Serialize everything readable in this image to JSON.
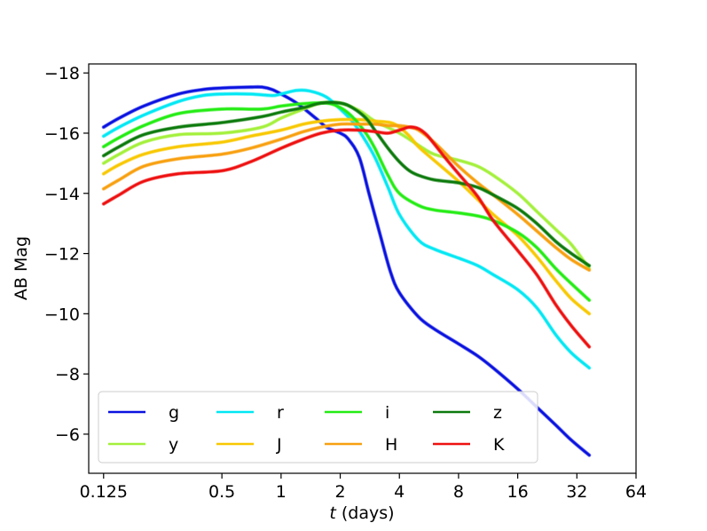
{
  "chart_data": {
    "type": "line",
    "title": "",
    "xlabel_italic": "t",
    "xlabel_rest": " (days)",
    "ylabel": "AB Mag",
    "xscale": "log2",
    "xlim": [
      0.105,
      64
    ],
    "ylim": [
      -4.7,
      -18.3
    ],
    "y_inverted": true,
    "x_ticks": [
      {
        "value": 0.125,
        "label": "0.125"
      },
      {
        "value": 0.5,
        "label": "0.5"
      },
      {
        "value": 1,
        "label": "1"
      },
      {
        "value": 2,
        "label": "2"
      },
      {
        "value": 4,
        "label": "4"
      },
      {
        "value": 8,
        "label": "8"
      },
      {
        "value": 16,
        "label": "16"
      },
      {
        "value": 32,
        "label": "32"
      },
      {
        "value": 64,
        "label": "64"
      }
    ],
    "y_ticks": [
      {
        "value": -18,
        "label": "−18"
      },
      {
        "value": -16,
        "label": "−16"
      },
      {
        "value": -14,
        "label": "−14"
      },
      {
        "value": -12,
        "label": "−12"
      },
      {
        "value": -10,
        "label": "−10"
      },
      {
        "value": -8,
        "label": "−8"
      },
      {
        "value": -6,
        "label": "−6"
      }
    ],
    "legend_position": "lower-left",
    "legend_columns": 4,
    "series": [
      {
        "name": "g",
        "color": "#0a12e0",
        "x": [
          0.125,
          0.15,
          0.2,
          0.3,
          0.4,
          0.5,
          0.6,
          0.7,
          0.8,
          0.9,
          1.0,
          1.2,
          1.5,
          1.7,
          2.0,
          2.2,
          2.5,
          2.8,
          3.2,
          3.6,
          4.0,
          5.0,
          6.0,
          8.0,
          10.0,
          12.0,
          16.0,
          20.0,
          25.0,
          30.0,
          37.0
        ],
        "y": [
          -16.2,
          -16.5,
          -16.9,
          -17.3,
          -17.45,
          -17.5,
          -17.52,
          -17.53,
          -17.53,
          -17.45,
          -17.3,
          -17.0,
          -16.5,
          -16.2,
          -16.0,
          -15.8,
          -15.2,
          -14.0,
          -12.6,
          -11.4,
          -10.7,
          -9.9,
          -9.5,
          -9.0,
          -8.6,
          -8.2,
          -7.5,
          -6.9,
          -6.3,
          -5.8,
          -5.3
        ]
      },
      {
        "name": "y",
        "color": "#a4f03c",
        "x": [
          0.125,
          0.15,
          0.2,
          0.3,
          0.5,
          0.8,
          1.0,
          1.3,
          1.6,
          2.0,
          2.5,
          3.0,
          4.0,
          5.0,
          6.0,
          8.0,
          10.0,
          12.0,
          16.0,
          20.0,
          25.0,
          30.0,
          37.0
        ],
        "y": [
          -15.0,
          -15.3,
          -15.7,
          -15.95,
          -16.0,
          -16.2,
          -16.5,
          -16.8,
          -17.0,
          -17.0,
          -16.75,
          -16.4,
          -16.0,
          -15.6,
          -15.3,
          -15.1,
          -14.9,
          -14.6,
          -14.0,
          -13.4,
          -12.8,
          -12.3,
          -11.5
        ]
      },
      {
        "name": "r",
        "color": "#00e8f4",
        "x": [
          0.125,
          0.15,
          0.2,
          0.3,
          0.4,
          0.5,
          0.7,
          0.9,
          1.0,
          1.2,
          1.4,
          1.7,
          2.0,
          2.3,
          2.6,
          3.0,
          3.5,
          4.0,
          5.0,
          6.0,
          8.0,
          10.0,
          12.0,
          16.0,
          20.0,
          25.0,
          30.0,
          37.0
        ],
        "y": [
          -15.9,
          -16.2,
          -16.6,
          -17.05,
          -17.25,
          -17.3,
          -17.3,
          -17.25,
          -17.3,
          -17.42,
          -17.4,
          -17.2,
          -16.8,
          -16.4,
          -15.9,
          -15.2,
          -14.2,
          -13.3,
          -12.45,
          -12.15,
          -11.85,
          -11.6,
          -11.3,
          -10.8,
          -10.2,
          -9.3,
          -8.7,
          -8.2
        ]
      },
      {
        "name": "J",
        "color": "#f8c800",
        "x": [
          0.125,
          0.15,
          0.2,
          0.3,
          0.5,
          0.7,
          1.0,
          1.3,
          1.6,
          2.0,
          2.5,
          3.0,
          3.6,
          4.0,
          4.5,
          5.0,
          6.0,
          8.0,
          10.0,
          12.0,
          16.0,
          20.0,
          25.0,
          30.0,
          37.0
        ],
        "y": [
          -14.65,
          -14.95,
          -15.3,
          -15.55,
          -15.7,
          -15.9,
          -16.1,
          -16.3,
          -16.4,
          -16.45,
          -16.45,
          -16.4,
          -16.35,
          -16.2,
          -15.9,
          -15.55,
          -15.1,
          -14.4,
          -13.8,
          -13.3,
          -12.6,
          -11.9,
          -11.1,
          -10.5,
          -10.0
        ]
      },
      {
        "name": "i",
        "color": "#24ec14",
        "x": [
          0.125,
          0.15,
          0.2,
          0.3,
          0.5,
          0.8,
          1.0,
          1.3,
          1.7,
          2.0,
          2.3,
          2.7,
          3.0,
          3.5,
          4.0,
          5.0,
          6.0,
          8.0,
          10.0,
          12.0,
          16.0,
          20.0,
          25.0,
          30.0,
          37.0
        ],
        "y": [
          -15.55,
          -15.85,
          -16.25,
          -16.65,
          -16.8,
          -16.8,
          -16.9,
          -16.98,
          -17.0,
          -16.85,
          -16.55,
          -16.0,
          -15.5,
          -14.6,
          -14.0,
          -13.6,
          -13.45,
          -13.35,
          -13.25,
          -13.1,
          -12.7,
          -12.2,
          -11.5,
          -11.0,
          -10.45
        ]
      },
      {
        "name": "H",
        "color": "#f8a010",
        "x": [
          0.125,
          0.15,
          0.2,
          0.3,
          0.5,
          0.7,
          1.0,
          1.3,
          1.6,
          2.0,
          2.5,
          3.0,
          3.5,
          4.0,
          4.5,
          5.0,
          6.0,
          8.0,
          10.0,
          12.0,
          16.0,
          20.0,
          25.0,
          30.0,
          37.0
        ],
        "y": [
          -14.15,
          -14.45,
          -14.9,
          -15.15,
          -15.3,
          -15.5,
          -15.8,
          -16.05,
          -16.2,
          -16.3,
          -16.3,
          -16.3,
          -16.25,
          -16.25,
          -16.2,
          -16.1,
          -15.7,
          -14.9,
          -14.35,
          -13.95,
          -13.3,
          -12.75,
          -12.2,
          -11.8,
          -11.45
        ]
      },
      {
        "name": "z",
        "color": "#0c7a0c",
        "x": [
          0.125,
          0.15,
          0.2,
          0.3,
          0.5,
          0.8,
          1.0,
          1.3,
          1.6,
          2.0,
          2.3,
          2.7,
          3.0,
          3.5,
          4.0,
          4.5,
          5.0,
          6.0,
          8.0,
          10.0,
          12.0,
          16.0,
          20.0,
          25.0,
          30.0,
          37.0
        ],
        "y": [
          -15.25,
          -15.55,
          -15.95,
          -16.2,
          -16.35,
          -16.55,
          -16.7,
          -16.85,
          -17.0,
          -17.0,
          -16.85,
          -16.5,
          -16.1,
          -15.5,
          -15.05,
          -14.75,
          -14.6,
          -14.45,
          -14.35,
          -14.2,
          -13.95,
          -13.5,
          -13.0,
          -12.4,
          -12.0,
          -11.6
        ]
      },
      {
        "name": "K",
        "color": "#ee1010",
        "x": [
          0.125,
          0.15,
          0.2,
          0.3,
          0.5,
          0.7,
          1.0,
          1.3,
          1.6,
          2.0,
          2.5,
          3.0,
          3.5,
          4.0,
          4.5,
          5.0,
          5.5,
          6.0,
          7.0,
          8.0,
          10.0,
          12.0,
          16.0,
          20.0,
          25.0,
          30.0,
          37.0
        ],
        "y": [
          -13.65,
          -13.95,
          -14.4,
          -14.65,
          -14.75,
          -15.05,
          -15.5,
          -15.8,
          -16.0,
          -16.1,
          -16.1,
          -16.05,
          -16.0,
          -16.1,
          -16.2,
          -16.15,
          -15.95,
          -15.65,
          -15.1,
          -14.65,
          -13.9,
          -13.1,
          -12.1,
          -11.3,
          -10.3,
          -9.6,
          -8.9
        ]
      }
    ],
    "legend_order": [
      "g",
      "r",
      "i",
      "z",
      "y",
      "J",
      "H",
      "K"
    ]
  }
}
